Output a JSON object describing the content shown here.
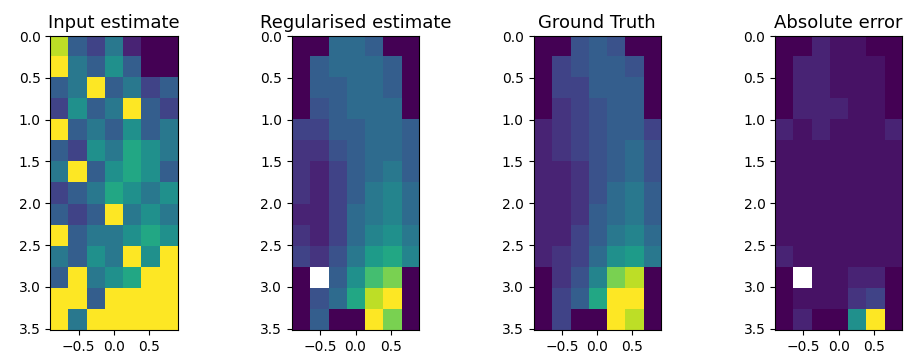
{
  "chart_data": [
    {
      "type": "heatmap",
      "title": "Input estimate",
      "xlim": [
        -0.9,
        0.9
      ],
      "ylim": [
        3.52,
        0.0
      ],
      "xticks": [
        {
          "value": -0.5,
          "label": "−0.5"
        },
        0.0,
        0.5
      ],
      "yticks": [
        0.0,
        0.5,
        1.0,
        1.5,
        2.0,
        2.5,
        3.0,
        3.5
      ],
      "cells": [
        [
          0.9,
          0.3,
          0.2,
          0.4,
          0.1,
          0.0,
          0.0
        ],
        [
          1.0,
          0.4,
          0.3,
          0.5,
          0.3,
          0.0,
          0.0
        ],
        [
          0.3,
          0.4,
          1.0,
          0.3,
          0.4,
          0.2,
          0.3
        ],
        [
          0.2,
          0.5,
          0.3,
          0.4,
          1.0,
          0.3,
          0.2
        ],
        [
          1.0,
          0.3,
          0.4,
          0.3,
          0.5,
          0.3,
          0.4
        ],
        [
          0.3,
          0.2,
          0.5,
          0.4,
          0.6,
          0.5,
          0.4
        ],
        [
          0.4,
          1.0,
          0.3,
          0.5,
          0.6,
          0.5,
          0.3
        ],
        [
          0.2,
          0.3,
          0.4,
          0.6,
          0.5,
          0.4,
          0.5
        ],
        [
          0.3,
          0.2,
          0.3,
          1.0,
          0.4,
          0.5,
          0.4
        ],
        [
          1.0,
          0.3,
          0.4,
          0.4,
          0.5,
          0.6,
          0.5
        ],
        [
          0.4,
          0.3,
          0.5,
          0.4,
          1.0,
          0.5,
          1.0
        ],
        [
          0.3,
          1.0,
          0.4,
          0.5,
          0.6,
          1.0,
          1.0
        ],
        [
          1.0,
          1.0,
          0.3,
          1.0,
          1.0,
          1.0,
          1.0
        ],
        [
          1.0,
          0.4,
          1.0,
          1.0,
          1.0,
          1.0,
          1.0
        ]
      ]
    },
    {
      "type": "heatmap",
      "title": "Regularised estimate",
      "xlim": [
        -0.9,
        0.9
      ],
      "ylim": [
        3.52,
        0.0
      ],
      "xticks": [
        {
          "value": -0.5,
          "label": "−0.5"
        },
        0.0,
        0.5
      ],
      "yticks": [
        0.0,
        0.5,
        1.0,
        1.5,
        2.0,
        2.5,
        3.0,
        3.5
      ],
      "cells": [
        [
          0.0,
          0.0,
          0.35,
          0.35,
          0.3,
          0.0,
          0.0
        ],
        [
          0.0,
          0.3,
          0.35,
          0.35,
          0.35,
          0.3,
          0.0
        ],
        [
          0.0,
          0.3,
          0.3,
          0.35,
          0.35,
          0.3,
          0.0
        ],
        [
          0.0,
          0.25,
          0.3,
          0.35,
          0.35,
          0.35,
          0.0
        ],
        [
          0.2,
          0.2,
          0.3,
          0.3,
          0.35,
          0.35,
          0.3
        ],
        [
          0.15,
          0.15,
          0.25,
          0.3,
          0.35,
          0.35,
          0.3
        ],
        [
          0.15,
          0.1,
          0.2,
          0.3,
          0.35,
          0.4,
          0.3
        ],
        [
          0.15,
          0.1,
          0.2,
          0.3,
          0.4,
          0.45,
          0.35
        ],
        [
          0.1,
          0.1,
          0.2,
          0.35,
          0.4,
          0.45,
          0.35
        ],
        [
          0.15,
          0.1,
          0.2,
          0.35,
          0.45,
          0.5,
          0.4
        ],
        [
          0.2,
          0.15,
          0.25,
          0.4,
          0.55,
          0.6,
          0.45
        ],
        [
          0.0,
          null,
          0.3,
          0.5,
          0.7,
          0.8,
          0.0
        ],
        [
          0.0,
          0.25,
          0.35,
          0.6,
          0.9,
          1.0,
          0.0
        ],
        [
          0.0,
          0.3,
          0.0,
          0.0,
          1.0,
          0.8,
          0.0
        ]
      ]
    },
    {
      "type": "heatmap",
      "title": "Ground Truth",
      "xlim": [
        -0.9,
        0.9
      ],
      "ylim": [
        3.52,
        0.0
      ],
      "xticks": [
        {
          "value": -0.5,
          "label": "−0.5"
        },
        0.0,
        0.5
      ],
      "yticks": [
        0.0,
        0.5,
        1.0,
        1.5,
        2.0,
        2.5,
        3.0,
        3.5
      ],
      "cells": [
        [
          0.0,
          0.0,
          0.25,
          0.3,
          0.25,
          0.0,
          0.0
        ],
        [
          0.0,
          0.2,
          0.25,
          0.3,
          0.3,
          0.25,
          0.0
        ],
        [
          0.0,
          0.2,
          0.2,
          0.3,
          0.3,
          0.3,
          0.0
        ],
        [
          0.0,
          0.15,
          0.2,
          0.25,
          0.3,
          0.3,
          0.0
        ],
        [
          0.1,
          0.15,
          0.2,
          0.25,
          0.3,
          0.3,
          0.2
        ],
        [
          0.1,
          0.15,
          0.2,
          0.25,
          0.3,
          0.35,
          0.25
        ],
        [
          0.1,
          0.1,
          0.15,
          0.25,
          0.3,
          0.35,
          0.25
        ],
        [
          0.1,
          0.1,
          0.15,
          0.25,
          0.35,
          0.4,
          0.3
        ],
        [
          0.1,
          0.1,
          0.15,
          0.3,
          0.35,
          0.4,
          0.3
        ],
        [
          0.1,
          0.1,
          0.2,
          0.3,
          0.4,
          0.45,
          0.35
        ],
        [
          0.1,
          0.15,
          0.2,
          0.35,
          0.5,
          0.55,
          0.4
        ],
        [
          0.0,
          0.15,
          0.25,
          0.45,
          0.8,
          0.9,
          0.0
        ],
        [
          0.0,
          0.2,
          0.3,
          0.6,
          1.0,
          1.0,
          0.0
        ],
        [
          0.0,
          0.2,
          0.0,
          0.0,
          1.0,
          0.9,
          0.0
        ]
      ]
    },
    {
      "type": "heatmap",
      "title": "Absolute error",
      "xlim": [
        -0.9,
        0.9
      ],
      "ylim": [
        3.52,
        0.0
      ],
      "xticks": [
        {
          "value": -0.5,
          "label": "−0.5"
        },
        0.0,
        0.5
      ],
      "yticks": [
        0.0,
        0.5,
        1.0,
        1.5,
        2.0,
        2.5,
        3.0,
        3.5
      ],
      "cells": [
        [
          0.0,
          0.0,
          0.1,
          0.05,
          0.05,
          0.0,
          0.0
        ],
        [
          0.0,
          0.1,
          0.1,
          0.05,
          0.05,
          0.05,
          0.0
        ],
        [
          0.0,
          0.1,
          0.1,
          0.05,
          0.05,
          0.05,
          0.0
        ],
        [
          0.0,
          0.1,
          0.1,
          0.1,
          0.05,
          0.05,
          0.0
        ],
        [
          0.1,
          0.05,
          0.1,
          0.05,
          0.05,
          0.05,
          0.1
        ],
        [
          0.05,
          0.05,
          0.05,
          0.05,
          0.05,
          0.05,
          0.05
        ],
        [
          0.05,
          0.05,
          0.05,
          0.05,
          0.05,
          0.05,
          0.05
        ],
        [
          0.05,
          0.05,
          0.05,
          0.05,
          0.05,
          0.05,
          0.05
        ],
        [
          0.05,
          0.05,
          0.05,
          0.05,
          0.05,
          0.05,
          0.05
        ],
        [
          0.05,
          0.05,
          0.05,
          0.05,
          0.05,
          0.05,
          0.05
        ],
        [
          0.1,
          0.05,
          0.05,
          0.05,
          0.05,
          0.05,
          0.05
        ],
        [
          0.0,
          null,
          0.05,
          0.05,
          0.1,
          0.1,
          0.0
        ],
        [
          0.0,
          0.05,
          0.05,
          0.05,
          0.15,
          0.2,
          0.0
        ],
        [
          0.0,
          0.1,
          0.0,
          0.0,
          0.5,
          1.0,
          0.0
        ]
      ]
    }
  ]
}
